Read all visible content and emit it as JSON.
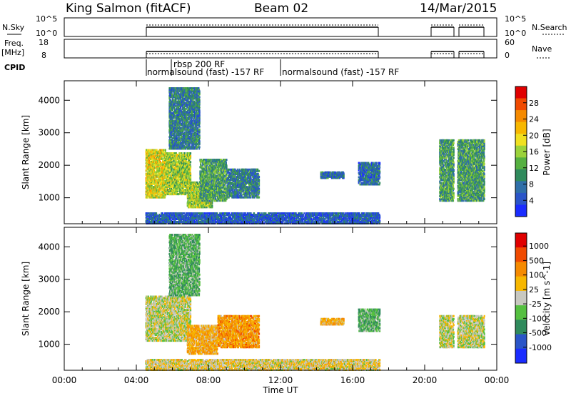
{
  "header": {
    "station": "King Salmon (fitACF)",
    "beam": "Beam 02",
    "date": "14/Mar/2015"
  },
  "strips": {
    "nsky_label": "N.Sky",
    "nsky_ticks": [
      "10^5",
      "10^0"
    ],
    "nsearch_label": "N.Search",
    "nsearch_ticks": [
      "10^5",
      "10^0"
    ],
    "freq_label": "Freq.",
    "freq_unit": "[MHz]",
    "freq_ticks": [
      "18",
      "8"
    ],
    "nave_label": "Nave",
    "nave_ticks": [
      "60",
      "0"
    ],
    "cpid_label": "CPID",
    "cpid_entries": [
      "rbsp 200 RF",
      "normalsound (fast) -157 RF",
      "normalsound (fast) -157 RF"
    ]
  },
  "chart_data": [
    {
      "type": "heatmap",
      "name": "power-panel",
      "xlabel": "",
      "ylabel": "Slant Range [km]",
      "xlim": [
        0,
        24
      ],
      "ylim": [
        200,
        4600
      ],
      "x_ticks": [
        0,
        4,
        8,
        12,
        16,
        20,
        24
      ],
      "y_ticks": [
        1000,
        2000,
        3000,
        4000
      ],
      "colorbar": {
        "label": "Power [dB]",
        "ticks": [
          "4",
          "8",
          "12",
          "16",
          "20",
          "24",
          "28"
        ],
        "colors": [
          "#1a2cff",
          "#2a55c8",
          "#2f6fa8",
          "#2f8a5c",
          "#55b040",
          "#9bd23a",
          "#f0e020",
          "#f7b700",
          "#f58a00",
          "#f04a00",
          "#e00000"
        ]
      },
      "regions": [
        {
          "t0": 4.5,
          "t1": 5.6,
          "r0": 1000,
          "r1": 2500,
          "v": 0.55
        },
        {
          "t0": 5.6,
          "t1": 7.0,
          "r0": 1100,
          "r1": 2400,
          "v": 0.45
        },
        {
          "t0": 5.8,
          "t1": 7.5,
          "r0": 2500,
          "r1": 4400,
          "v": 0.2
        },
        {
          "t0": 6.8,
          "t1": 8.2,
          "r0": 700,
          "r1": 1500,
          "v": 0.45
        },
        {
          "t0": 7.5,
          "t1": 9.0,
          "r0": 900,
          "r1": 2200,
          "v": 0.3
        },
        {
          "t0": 9.0,
          "t1": 10.8,
          "r0": 1000,
          "r1": 1900,
          "v": 0.2
        },
        {
          "t0": 14.2,
          "t1": 15.5,
          "r0": 1600,
          "r1": 1800,
          "v": 0.15
        },
        {
          "t0": 16.3,
          "t1": 17.5,
          "r0": 1400,
          "r1": 2100,
          "v": 0.15
        },
        {
          "t0": 20.8,
          "t1": 21.6,
          "r0": 900,
          "r1": 2800,
          "v": 0.3
        },
        {
          "t0": 21.8,
          "t1": 23.3,
          "r0": 900,
          "r1": 2800,
          "v": 0.3
        },
        {
          "t0": 4.5,
          "t1": 17.5,
          "r0": 200,
          "r1": 550,
          "v": 0.1
        }
      ]
    },
    {
      "type": "heatmap",
      "name": "velocity-panel",
      "xlabel": "Time UT",
      "ylabel": "Slant Range [km]",
      "xlim": [
        0,
        24
      ],
      "ylim": [
        200,
        4600
      ],
      "x_ticks": [
        0,
        4,
        8,
        12,
        16,
        20,
        24
      ],
      "x_tick_labels": [
        "00:00",
        "04:00",
        "08:00",
        "12:00",
        "16:00",
        "20:00",
        "00:00"
      ],
      "y_ticks": [
        1000,
        2000,
        3000,
        4000
      ],
      "colorbar": {
        "label": "Velocity [m s^-1]",
        "ticks": [
          "1000",
          "500",
          "100",
          "25",
          "-25",
          "-100",
          "-500",
          "-1000"
        ],
        "colors": [
          "#1a2cff",
          "#2a55c8",
          "#2f8a5c",
          "#55c040",
          "#c8c8c0",
          "#f7b700",
          "#f58a00",
          "#f04a00",
          "#e00000"
        ]
      },
      "regions": [
        {
          "t0": 4.5,
          "t1": 7.0,
          "r0": 1100,
          "r1": 2500,
          "v": 0.45
        },
        {
          "t0": 5.8,
          "t1": 7.5,
          "r0": 2500,
          "r1": 4400,
          "v": 0.3
        },
        {
          "t0": 6.8,
          "t1": 8.5,
          "r0": 700,
          "r1": 1600,
          "v": 0.6
        },
        {
          "t0": 8.5,
          "t1": 10.8,
          "r0": 900,
          "r1": 1900,
          "v": 0.65
        },
        {
          "t0": 14.2,
          "t1": 15.5,
          "r0": 1600,
          "r1": 1800,
          "v": 0.6
        },
        {
          "t0": 16.3,
          "t1": 17.5,
          "r0": 1400,
          "r1": 2100,
          "v": 0.3
        },
        {
          "t0": 20.8,
          "t1": 21.6,
          "r0": 900,
          "r1": 1900,
          "v": 0.45
        },
        {
          "t0": 21.8,
          "t1": 23.3,
          "r0": 900,
          "r1": 1900,
          "v": 0.45
        },
        {
          "t0": 4.5,
          "t1": 17.5,
          "r0": 200,
          "r1": 550,
          "v": 0.5
        }
      ]
    }
  ]
}
